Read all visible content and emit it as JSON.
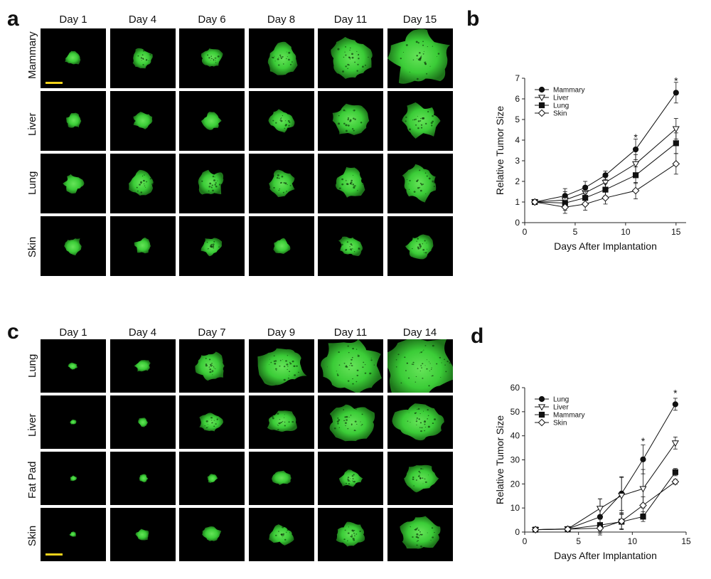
{
  "panel_a": {
    "letter": "a",
    "columns": [
      "Day 1",
      "Day 4",
      "Day 6",
      "Day 8",
      "Day 11",
      "Day 15"
    ],
    "rows": [
      "Mammary",
      "Liver",
      "Lung",
      "Skin"
    ]
  },
  "panel_b": {
    "letter": "b"
  },
  "panel_c": {
    "letter": "c",
    "columns": [
      "Day 1",
      "Day 4",
      "Day 7",
      "Day 9",
      "Day 11",
      "Day 14"
    ],
    "rows": [
      "Lung",
      "Liver",
      "Fat Pad",
      "Skin"
    ]
  },
  "panel_d": {
    "letter": "d"
  },
  "colors": {
    "tumor_fluorescence": "#3ed73a",
    "background": "#000000",
    "scale_bar": "#f2d21a"
  },
  "chart_data": [
    {
      "type": "line",
      "panel": "b",
      "xlabel": "Days After Implantation",
      "ylabel": "Relative Tumor Size",
      "xlim": [
        0,
        16
      ],
      "ylim": [
        0,
        7
      ],
      "xticks": [
        0,
        5,
        10,
        15
      ],
      "yticks": [
        0,
        1,
        2,
        3,
        4,
        5,
        6,
        7
      ],
      "legend_position": "top-left",
      "x": [
        1,
        4,
        6,
        8,
        11,
        15
      ],
      "series": [
        {
          "name": "Mammary",
          "marker": "filled-circle",
          "values": [
            1.0,
            1.3,
            1.7,
            2.3,
            3.55,
            6.3
          ],
          "errors": [
            0.05,
            0.35,
            0.3,
            0.2,
            0.5,
            0.5
          ]
        },
        {
          "name": "Liver",
          "marker": "open-triangle-down",
          "values": [
            1.0,
            1.1,
            1.45,
            1.95,
            2.85,
            4.55
          ],
          "errors": [
            0.05,
            0.4,
            0.3,
            0.25,
            0.45,
            0.5
          ]
        },
        {
          "name": "Lung",
          "marker": "filled-square",
          "values": [
            1.0,
            0.95,
            1.2,
            1.6,
            2.3,
            3.85
          ],
          "errors": [
            0.05,
            0.35,
            0.3,
            0.3,
            0.4,
            0.5
          ]
        },
        {
          "name": "Skin",
          "marker": "open-diamond",
          "values": [
            1.0,
            0.75,
            0.9,
            1.2,
            1.55,
            2.85
          ],
          "errors": [
            0.05,
            0.3,
            0.3,
            0.3,
            0.4,
            0.5
          ]
        }
      ],
      "annotations": [
        {
          "x": 11,
          "y": 4.1,
          "text": "*"
        },
        {
          "x": 15,
          "y": 6.85,
          "text": "*"
        }
      ]
    },
    {
      "type": "line",
      "panel": "d",
      "xlabel": "Days After Implantation",
      "ylabel": "Relative Tumor Size",
      "xlim": [
        0,
        15
      ],
      "ylim": [
        0,
        60
      ],
      "xticks": [
        0,
        5,
        10,
        15
      ],
      "yticks": [
        0,
        10,
        20,
        30,
        40,
        50,
        60
      ],
      "legend_position": "top-left",
      "x": [
        1,
        4,
        7,
        9,
        11,
        14
      ],
      "series": [
        {
          "name": "Lung",
          "marker": "filled-circle",
          "values": [
            1.0,
            1.3,
            6.3,
            16.0,
            30.2,
            53.1
          ],
          "errors": [
            0.3,
            0.5,
            7.5,
            7.0,
            6.0,
            2.5
          ]
        },
        {
          "name": "Liver",
          "marker": "open-triangle-down",
          "values": [
            1.0,
            1.3,
            9.8,
            15.2,
            18.0,
            37.0
          ],
          "errors": [
            0.3,
            0.5,
            4.0,
            7.5,
            8.0,
            2.5
          ]
        },
        {
          "name": "Mammary",
          "marker": "filled-square",
          "values": [
            1.0,
            1.2,
            2.9,
            4.3,
            6.4,
            24.9
          ],
          "errors": [
            0.3,
            0.5,
            2.5,
            3.0,
            2.0,
            1.5
          ]
        },
        {
          "name": "Skin",
          "marker": "open-diamond",
          "values": [
            1.0,
            1.2,
            1.6,
            4.5,
            11.1,
            20.9
          ],
          "errors": [
            0.3,
            0.5,
            2.0,
            3.5,
            3.5,
            1.0
          ]
        }
      ],
      "annotations": [
        {
          "x": 11,
          "y": 37.5,
          "text": "*"
        },
        {
          "x": 14,
          "y": 57.5,
          "text": "*"
        }
      ]
    }
  ]
}
